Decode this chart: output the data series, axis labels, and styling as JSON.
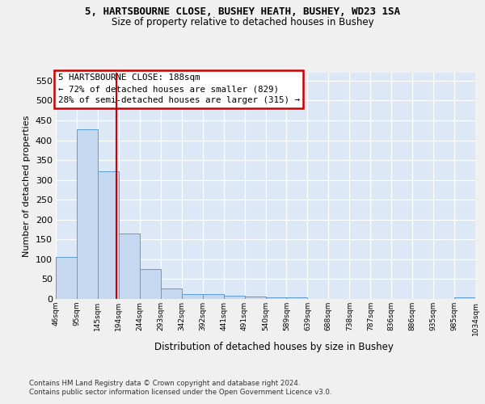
{
  "title_line1": "5, HARTSBOURNE CLOSE, BUSHEY HEATH, BUSHEY, WD23 1SA",
  "title_line2": "Size of property relative to detached houses in Bushey",
  "xlabel": "Distribution of detached houses by size in Bushey",
  "ylabel": "Number of detached properties",
  "bar_values": [
    105,
    428,
    322,
    165,
    76,
    26,
    12,
    12,
    8,
    6,
    5,
    5,
    0,
    0,
    0,
    0,
    0,
    0,
    0,
    5
  ],
  "categories": [
    "46sqm",
    "95sqm",
    "145sqm",
    "194sqm",
    "244sqm",
    "293sqm",
    "342sqm",
    "392sqm",
    "441sqm",
    "491sqm",
    "540sqm",
    "589sqm",
    "639sqm",
    "688sqm",
    "738sqm",
    "787sqm",
    "836sqm",
    "886sqm",
    "935sqm",
    "985sqm",
    "1034sqm"
  ],
  "bar_color": "#c5d8ef",
  "bar_edge_color": "#5b9bd5",
  "vline_color": "#cc0000",
  "vline_x": 2.88,
  "annotation_line1": "5 HARTSBOURNE CLOSE: 188sqm",
  "annotation_line2": "← 72% of detached houses are smaller (829)",
  "annotation_line3": "28% of semi-detached houses are larger (315) →",
  "annotation_box_color": "#ffffff",
  "annotation_box_edge": "#cc0000",
  "ylim": [
    0,
    570
  ],
  "yticks": [
    0,
    50,
    100,
    150,
    200,
    250,
    300,
    350,
    400,
    450,
    500,
    550
  ],
  "footnote1": "Contains HM Land Registry data © Crown copyright and database right 2024.",
  "footnote2": "Contains public sector information licensed under the Open Government Licence v3.0.",
  "fig_bg": "#f0f0f0",
  "plot_bg": "#dce8f5"
}
